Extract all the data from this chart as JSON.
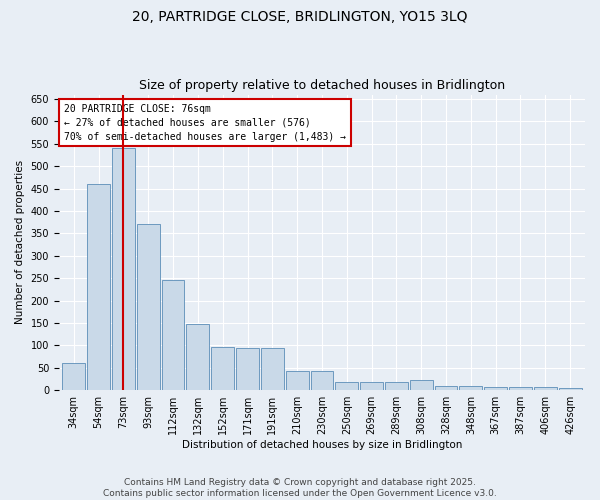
{
  "title": "20, PARTRIDGE CLOSE, BRIDLINGTON, YO15 3LQ",
  "subtitle": "Size of property relative to detached houses in Bridlington",
  "xlabel": "Distribution of detached houses by size in Bridlington",
  "ylabel": "Number of detached properties",
  "categories": [
    "34sqm",
    "54sqm",
    "73sqm",
    "93sqm",
    "112sqm",
    "132sqm",
    "152sqm",
    "171sqm",
    "191sqm",
    "210sqm",
    "230sqm",
    "250sqm",
    "269sqm",
    "289sqm",
    "308sqm",
    "328sqm",
    "348sqm",
    "367sqm",
    "387sqm",
    "406sqm",
    "426sqm"
  ],
  "values": [
    60,
    460,
    540,
    370,
    245,
    148,
    97,
    95,
    95,
    42,
    42,
    18,
    18,
    18,
    22,
    10,
    10,
    7,
    7,
    7,
    4
  ],
  "bar_color": "#c9d9e8",
  "bar_edge_color": "#5b8db8",
  "vline_x_index": 2,
  "vline_color": "#cc0000",
  "annotation_text": "20 PARTRIDGE CLOSE: 76sqm\n← 27% of detached houses are smaller (576)\n70% of semi-detached houses are larger (1,483) →",
  "annotation_box_color": "#ffffff",
  "annotation_box_edge": "#cc0000",
  "ylim": [
    0,
    660
  ],
  "yticks": [
    0,
    50,
    100,
    150,
    200,
    250,
    300,
    350,
    400,
    450,
    500,
    550,
    600,
    650
  ],
  "background_color": "#e8eef5",
  "footer": "Contains HM Land Registry data © Crown copyright and database right 2025.\nContains public sector information licensed under the Open Government Licence v3.0.",
  "title_fontsize": 10,
  "subtitle_fontsize": 9,
  "axis_label_fontsize": 7.5,
  "tick_fontsize": 7,
  "annotation_fontsize": 7,
  "footer_fontsize": 6.5
}
